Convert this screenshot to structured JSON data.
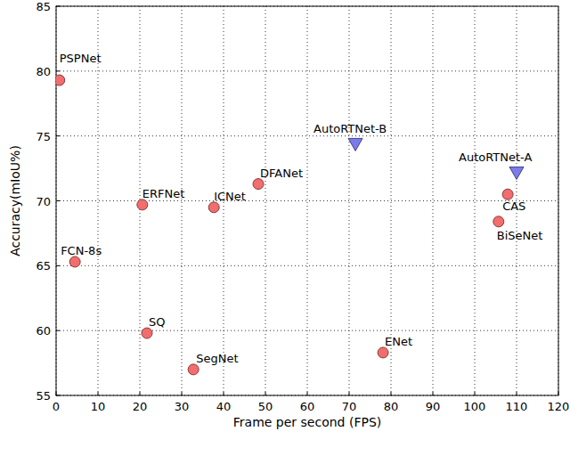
{
  "chart_data": {
    "type": "scatter",
    "x_label": "Frame per second (FPS)",
    "y_label": "Accuracy(mIoU%)",
    "xlim": [
      0,
      120
    ],
    "ylim": [
      55,
      85
    ],
    "xticks": [
      0,
      10,
      20,
      30,
      40,
      50,
      60,
      70,
      80,
      90,
      100,
      110,
      120
    ],
    "yticks": [
      55,
      60,
      65,
      70,
      75,
      80,
      85
    ],
    "grid": true,
    "series": [
      {
        "color": "#f26d6d",
        "marker": "circle",
        "labels": [
          "PSPNet",
          "FCN-8s",
          "ERFNet",
          "ICNet",
          "DFANet",
          "SQ",
          "SegNet",
          "ENet",
          "CAS",
          "BiSeNet"
        ],
        "x": [
          0.8,
          4.5,
          20.6,
          37.7,
          48.3,
          21.7,
          32.8,
          78.1,
          107.9,
          105.7
        ],
        "values": [
          79.3,
          65.3,
          69.7,
          69.5,
          71.3,
          59.8,
          57.0,
          58.3,
          70.5,
          68.4
        ]
      },
      {
        "color": "#7b7bec",
        "marker": "triangle-down",
        "labels": [
          "AutoRTNet-B",
          "AutoRTNet-A"
        ],
        "x": [
          71.5,
          110.0
        ],
        "values": [
          74.4,
          72.2
        ]
      }
    ]
  }
}
